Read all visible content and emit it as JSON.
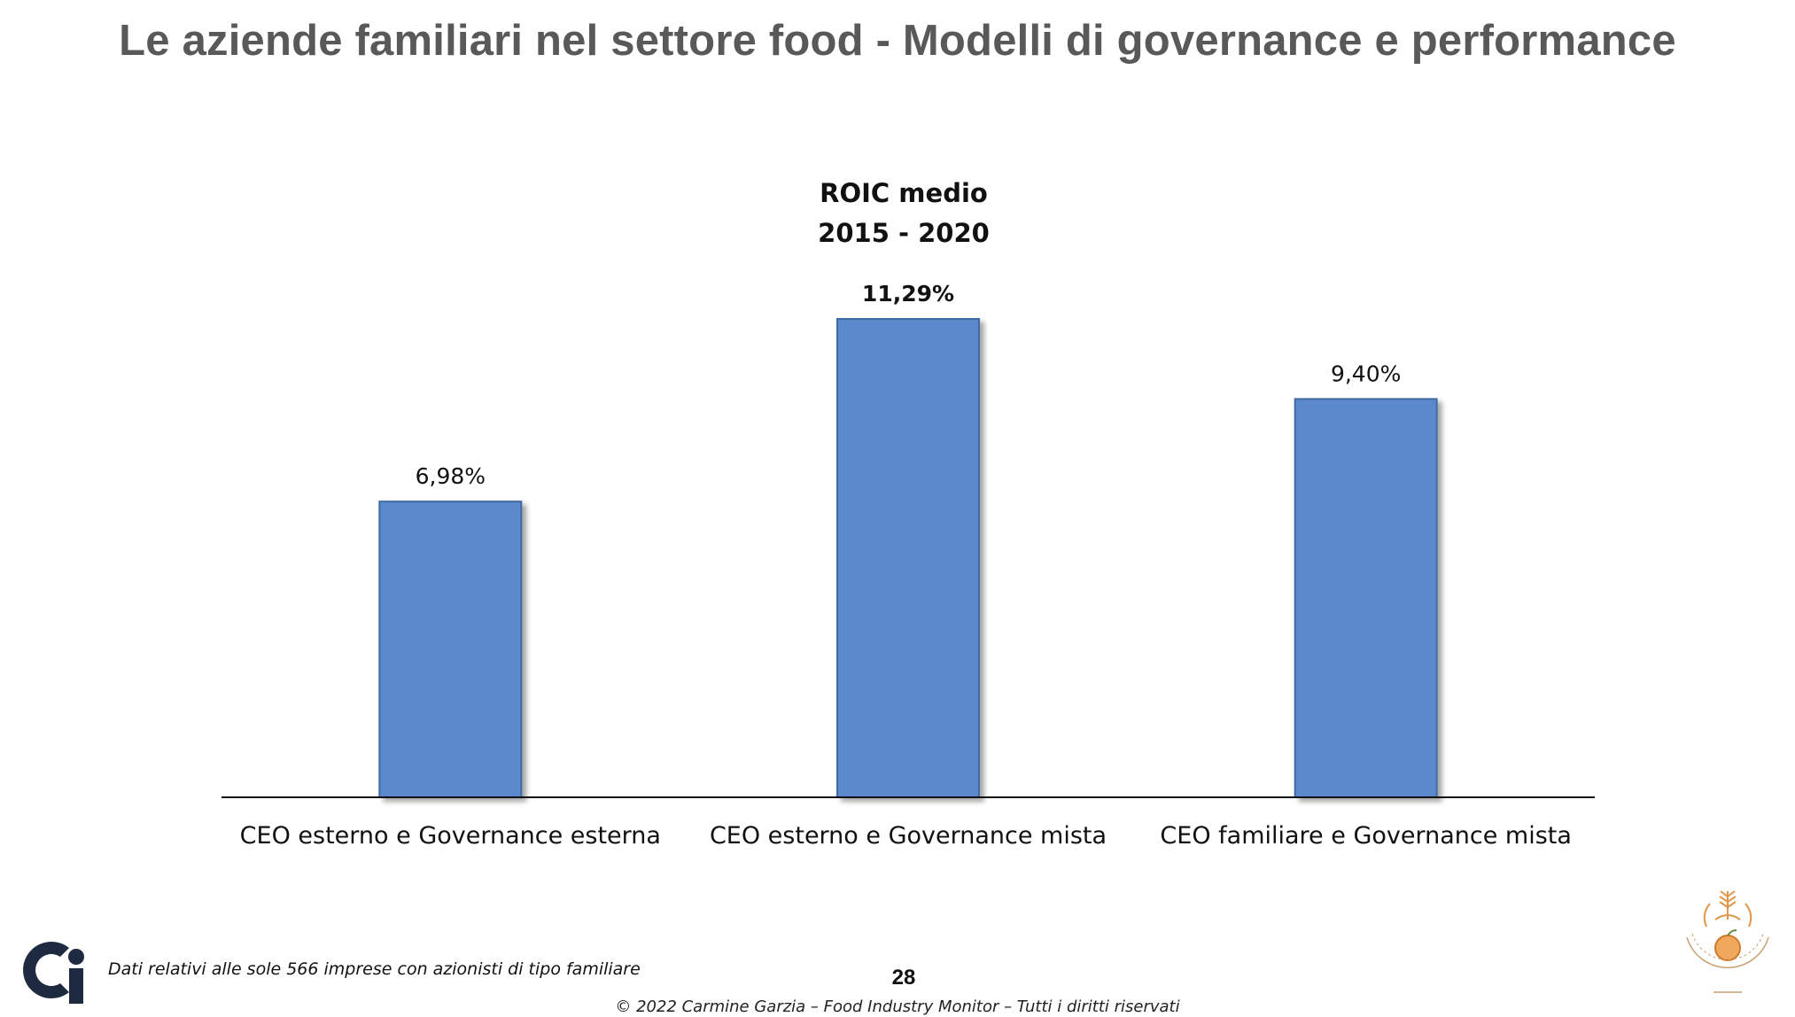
{
  "slide": {
    "title": "Le aziende familiari nel settore food - Modelli di governance e performance",
    "footnote": "Dati relativi alle sole 566 imprese con azionisti di tipo familiare",
    "page_number": "28",
    "copyright": "© 2022 Carmine Garzia – Food Industry Monitor – Tutti i diritti riservati"
  },
  "chart_data": {
    "type": "bar",
    "title_lines": [
      "ROIC medio",
      "2015 - 2020"
    ],
    "categories": [
      "CEO esterno e Governance esterna",
      "CEO esterno e Governance mista",
      "CEO familiare e Governance mista"
    ],
    "values": [
      6.98,
      11.29,
      9.4
    ],
    "value_labels": [
      "6,98%",
      "11,29%",
      "9,40%"
    ],
    "highlighted_index": 1,
    "xlabel": "",
    "ylabel": "",
    "ylim": [
      0,
      11.29
    ],
    "grid": false,
    "legend": "none",
    "bar_color": "#5a8acb",
    "bar_border_color": "#3f6aa3",
    "axis_color": "#111111"
  },
  "logos": {
    "left": {
      "icon": "ci-logo-icon",
      "color": "#1e2a3f"
    },
    "right": {
      "icon": "university-seal-icon",
      "color": "#e0964a"
    }
  }
}
